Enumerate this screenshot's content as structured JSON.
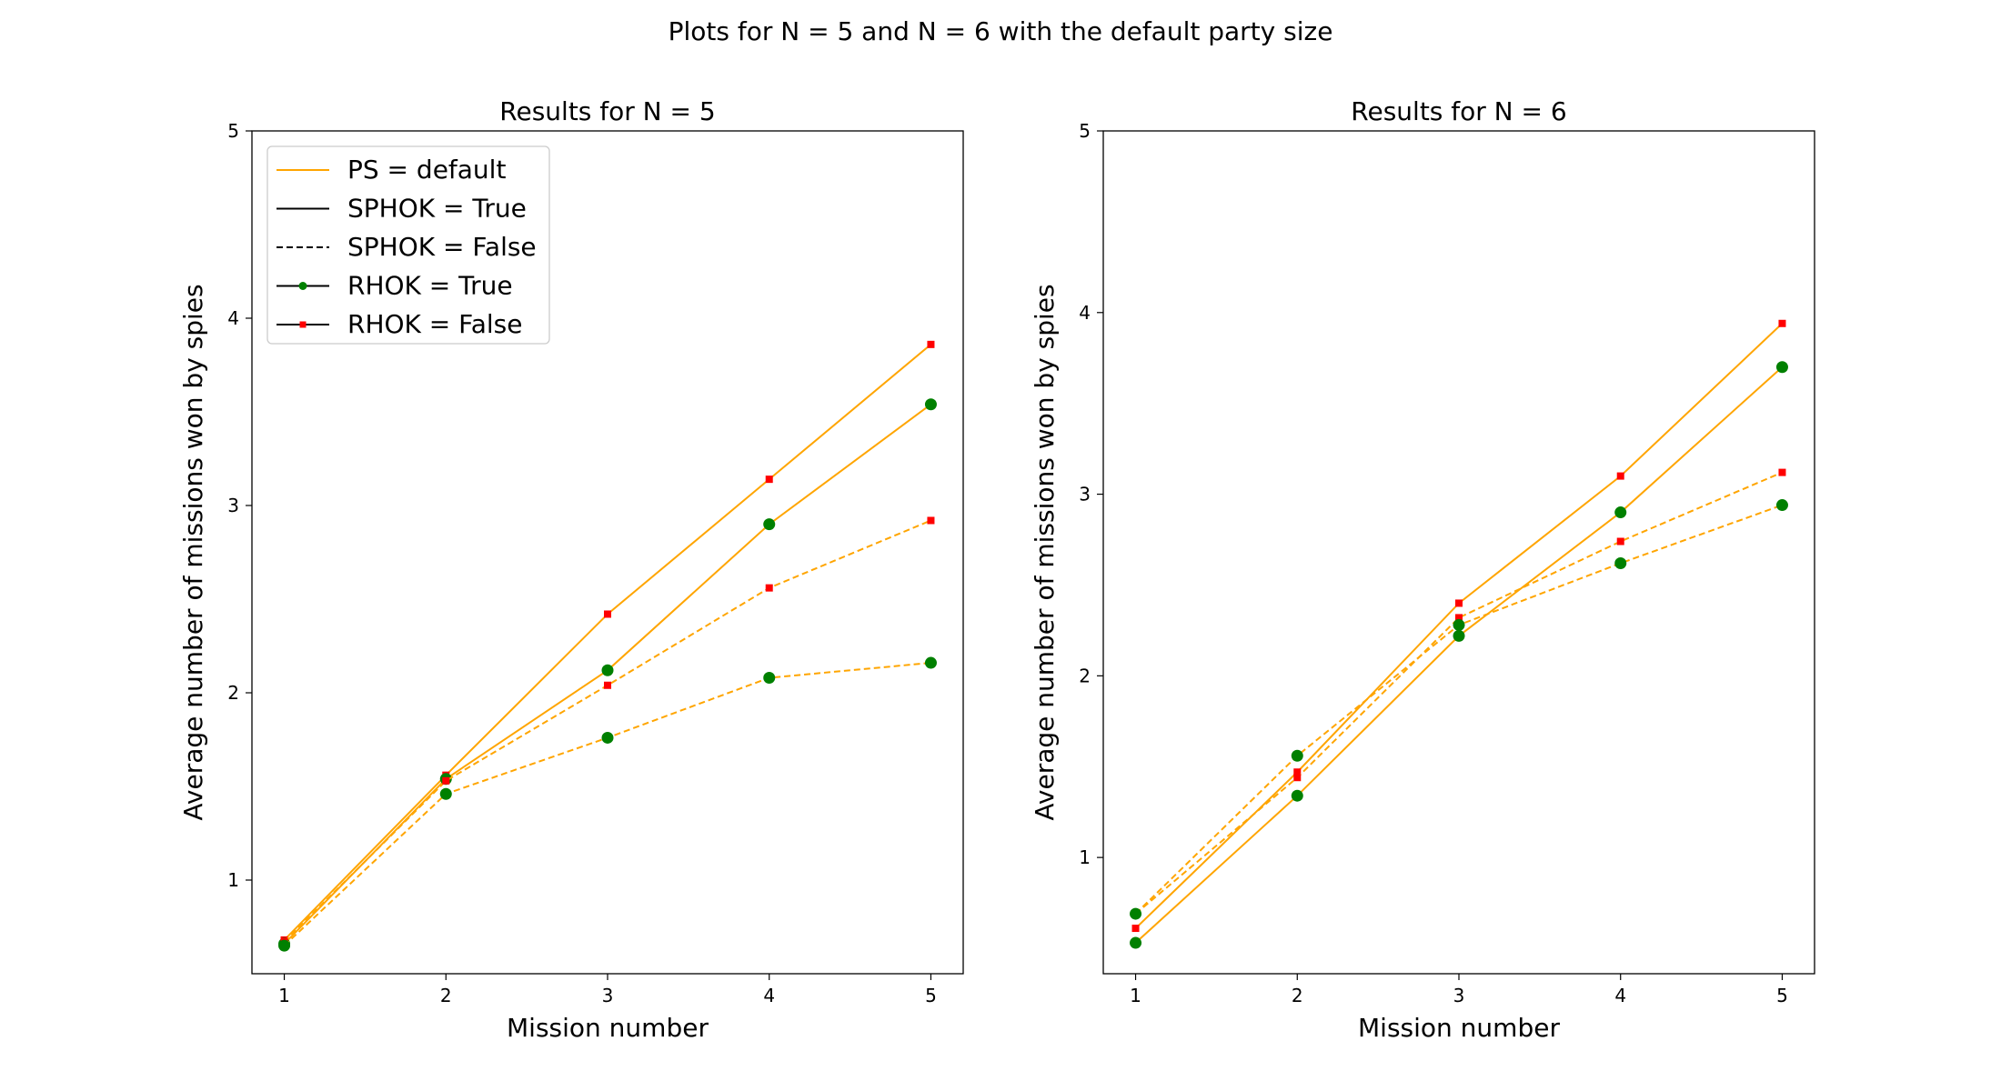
{
  "figure": {
    "title": "Plots for N = 5 and N = 6 with the default party size"
  },
  "legend": {
    "placement": "upper-left of left chart",
    "entries": [
      {
        "label": "PS = default",
        "style": "solid",
        "color": "#ffa500",
        "marker": "none"
      },
      {
        "label": "SPHOK = True",
        "style": "solid",
        "color": "#000000",
        "marker": "none"
      },
      {
        "label": "SPHOK = False",
        "style": "dashed",
        "color": "#000000",
        "marker": "none"
      },
      {
        "label": "RHOK = True",
        "style": "solid",
        "color": "#000000",
        "marker": "circle",
        "marker_color": "#008000"
      },
      {
        "label": "RHOK = False",
        "style": "solid",
        "color": "#000000",
        "marker": "square",
        "marker_color": "#ff0000"
      }
    ]
  },
  "colors": {
    "line": "#ffa500",
    "rhok_true_marker": "#008000",
    "rhok_false_marker": "#ff0000"
  },
  "chart_data": [
    {
      "type": "line",
      "title": "Results for N = 5",
      "xlabel": "Mission number",
      "ylabel": "Average number of missions won by spies",
      "x": [
        1,
        2,
        3,
        4,
        5
      ],
      "xticks": [
        "1",
        "2",
        "3",
        "4",
        "5"
      ],
      "yticks": [
        "1",
        "2",
        "3",
        "4",
        "5"
      ],
      "xlim": [
        0.8,
        5.2
      ],
      "ylim": [
        0.5,
        5
      ],
      "grid": false,
      "series": [
        {
          "sphok": true,
          "rhok": false,
          "style": "solid",
          "values": [
            0.68,
            1.56,
            2.42,
            3.14,
            3.86
          ]
        },
        {
          "sphok": true,
          "rhok": true,
          "style": "solid",
          "values": [
            0.66,
            1.54,
            2.12,
            2.9,
            3.54
          ]
        },
        {
          "sphok": false,
          "rhok": false,
          "style": "dashed",
          "values": [
            0.67,
            1.53,
            2.04,
            2.56,
            2.92
          ]
        },
        {
          "sphok": false,
          "rhok": true,
          "style": "dashed",
          "values": [
            0.65,
            1.46,
            1.76,
            2.08,
            2.16
          ]
        }
      ]
    },
    {
      "type": "line",
      "title": "Results for N = 6",
      "xlabel": "Mission number",
      "ylabel": "Average number of missions won by spies",
      "x": [
        1,
        2,
        3,
        4,
        5
      ],
      "xticks": [
        "1",
        "2",
        "3",
        "4",
        "5"
      ],
      "yticks": [
        "1",
        "2",
        "3",
        "4",
        "5"
      ],
      "xlim": [
        0.8,
        5.2
      ],
      "ylim": [
        0.36,
        5
      ],
      "grid": false,
      "series": [
        {
          "sphok": true,
          "rhok": false,
          "style": "solid",
          "values": [
            0.61,
            1.47,
            2.4,
            3.1,
            3.94
          ]
        },
        {
          "sphok": true,
          "rhok": true,
          "style": "solid",
          "values": [
            0.53,
            1.34,
            2.22,
            2.9,
            3.7
          ]
        },
        {
          "sphok": false,
          "rhok": false,
          "style": "dashed",
          "values": [
            0.69,
            1.44,
            2.32,
            2.74,
            3.12
          ]
        },
        {
          "sphok": false,
          "rhok": true,
          "style": "dashed",
          "values": [
            0.69,
            1.56,
            2.28,
            2.62,
            2.94
          ]
        }
      ]
    }
  ]
}
